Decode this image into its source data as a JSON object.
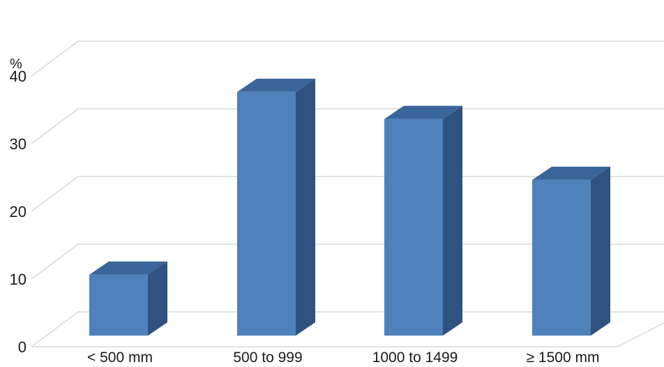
{
  "chart_data": {
    "type": "bar",
    "categories": [
      "< 500 mm",
      "500 to 999",
      "1000 to 1499",
      "≥ 1500 mm"
    ],
    "values": [
      9,
      36,
      32,
      23
    ],
    "ylabel": "%",
    "ylim": [
      0,
      40
    ],
    "yticks": [
      "0",
      "10",
      "20",
      "30",
      "40"
    ],
    "grid": true,
    "style": "3d-bar",
    "colors": {
      "bar_front": "#4f81bd",
      "bar_side": "#2f5280",
      "bar_top": "#3a659b",
      "grid": "#d9d9d9"
    }
  }
}
